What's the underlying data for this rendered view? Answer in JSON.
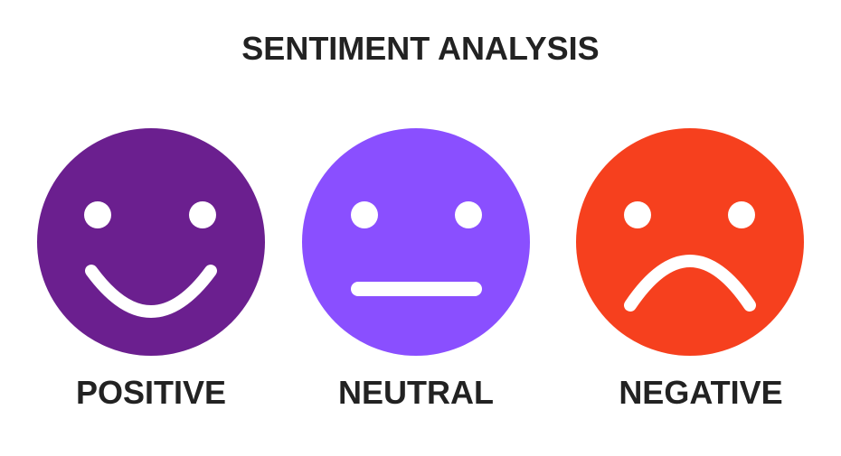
{
  "title": "SENTIMENT ANALYSIS",
  "faces": [
    {
      "label": "POSITIVE"
    },
    {
      "label": "NEUTRAL"
    },
    {
      "label": "NEGATIVE"
    }
  ]
}
